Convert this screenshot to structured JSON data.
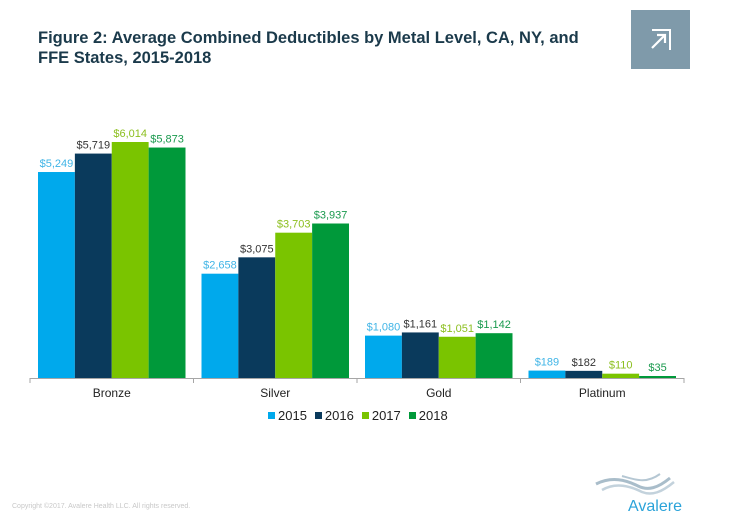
{
  "header": {
    "title_line1": "Figure 2: Average Combined Deductibles by Metal Level, CA, NY, and",
    "title_line2": "FFE States, 2015-2018",
    "expand_icon": "expand-arrow-icon"
  },
  "footer": {
    "copyright": "Copyright ©2017. Avalere Health LLC. All rights reserved.",
    "logo_text": "Avalere"
  },
  "colors": {
    "2015": "#00a9ec",
    "2016": "#0a3a5c",
    "2017": "#7ac400",
    "2018": "#00993a",
    "label_2015": "#3fb4e6",
    "label_2016": "#333333",
    "label_2017": "#8cbf1f",
    "label_2018": "#1a9a4e",
    "expand_bg": "#7f9aaa",
    "title": "#1b3a4b"
  },
  "chart_data": {
    "type": "bar",
    "title": "Figure 2: Average Combined Deductibles by Metal Level, CA, NY, and FFE States, 2015-2018",
    "xlabel": "",
    "ylabel": "",
    "categories": [
      "Bronze",
      "Silver",
      "Gold",
      "Platinum"
    ],
    "series": [
      {
        "name": "2015",
        "values": [
          5249,
          2658,
          1080,
          189
        ],
        "labels": [
          "$5,249",
          "$2,658",
          "$1,080",
          "$189"
        ]
      },
      {
        "name": "2016",
        "values": [
          5719,
          3075,
          1161,
          182
        ],
        "labels": [
          "$5,719",
          "$3,075",
          "$1,161",
          "$182"
        ]
      },
      {
        "name": "2017",
        "values": [
          6014,
          3703,
          1051,
          110
        ],
        "labels": [
          "$6,014",
          "$3,703",
          "$1,051",
          "$110"
        ]
      },
      {
        "name": "2018",
        "values": [
          5873,
          3937,
          1142,
          35
        ],
        "labels": [
          "$5,873",
          "$3,937",
          "$1,142",
          "$35"
        ]
      }
    ],
    "ylim": [
      0,
      6014
    ],
    "grid": false,
    "legend_position": "bottom-center",
    "y_axis_visible": false,
    "data_labels": true
  }
}
